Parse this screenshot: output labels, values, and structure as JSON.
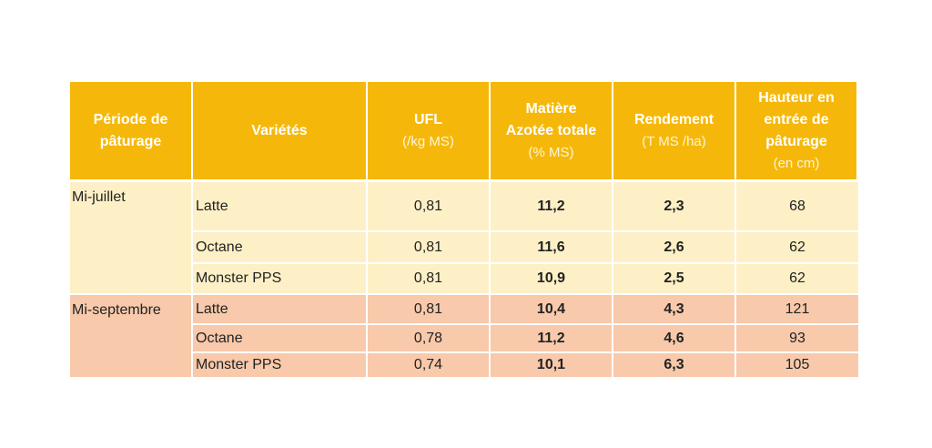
{
  "table": {
    "header": [
      {
        "title": "Période de pâturage"
      },
      {
        "title": "Variétés"
      },
      {
        "title": "UFL",
        "unit": "(/kg MS)"
      },
      {
        "title": "Matière Azotée totale",
        "unit": "(% MS)"
      },
      {
        "title": "Rendement",
        "unit": "(T MS /ha)"
      },
      {
        "title": "Hauteur en entrée de pâturage",
        "unit": "(en cm)"
      }
    ],
    "groups": [
      {
        "period": "Mi-juillet",
        "rows": [
          [
            "Latte",
            "0,81",
            "11,2",
            "2,3",
            "68"
          ],
          [
            "Octane",
            "0,81",
            "11,6",
            "2,6",
            "62"
          ],
          [
            "Monster PPS",
            "0,81",
            "10,9",
            "2,5",
            "62"
          ]
        ]
      },
      {
        "period": "Mi-septembre",
        "rows": [
          [
            "Latte",
            "0,81",
            "10,4",
            "4,3",
            "121"
          ],
          [
            "Octane",
            "0,78",
            "11,2",
            "4,6",
            "93"
          ],
          [
            "Monster PPS",
            "0,74",
            "10,1",
            "6,3",
            "105"
          ]
        ]
      }
    ]
  }
}
